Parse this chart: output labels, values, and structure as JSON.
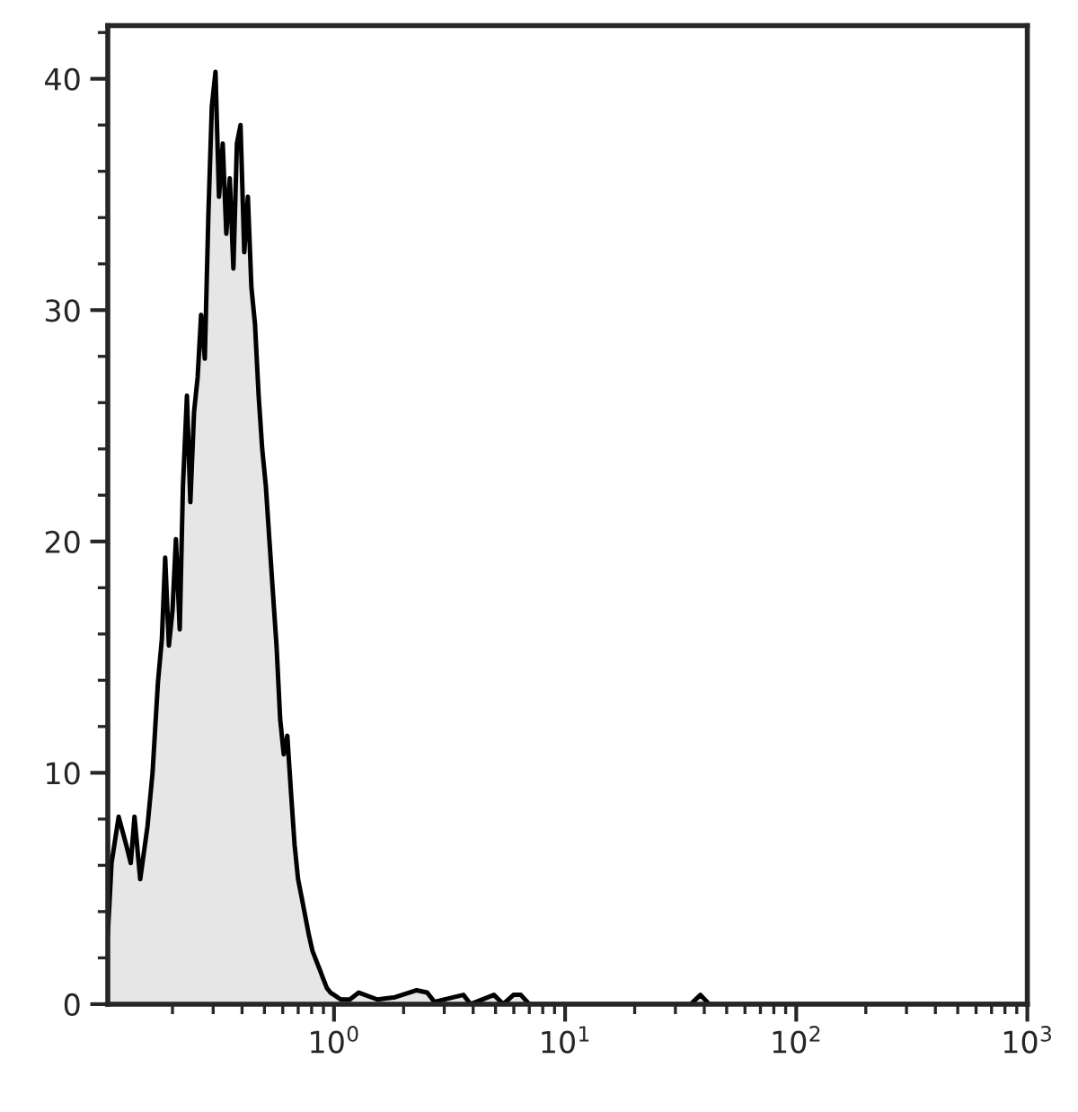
{
  "chart_data": {
    "type": "area",
    "log": "x",
    "grid": false,
    "legend": false,
    "xlim": [
      0.105,
      1000
    ],
    "ylim": [
      0,
      42.3
    ],
    "xticks": [
      {
        "value": 1,
        "label": "10$^{0}$"
      },
      {
        "value": 10,
        "label": "10$^{1}$"
      },
      {
        "value": 100,
        "label": "10$^{2}$"
      },
      {
        "value": 1000,
        "label": "10$^{3}$"
      }
    ],
    "yticks": [
      0,
      10,
      20,
      30,
      40
    ],
    "series": [
      {
        "color": "#e6e6e6",
        "x": [
          0.105,
          0.109,
          0.117,
          0.126,
          0.132,
          0.137,
          0.145,
          0.156,
          0.164,
          0.173,
          0.18,
          0.186,
          0.193,
          0.2,
          0.207,
          0.215,
          0.222,
          0.231,
          0.239,
          0.248,
          0.257,
          0.266,
          0.276,
          0.286,
          0.296,
          0.307,
          0.318,
          0.33,
          0.342,
          0.354,
          0.367,
          0.38,
          0.394,
          0.409,
          0.424,
          0.439,
          0.455,
          0.472,
          0.489,
          0.507,
          0.525,
          0.544,
          0.564,
          0.585,
          0.606,
          0.628,
          0.651,
          0.675,
          0.699,
          0.725,
          0.751,
          0.778,
          0.807,
          0.836,
          0.867,
          0.898,
          0.931,
          0.965,
          1.0,
          1.07,
          1.17,
          1.28,
          1.54,
          1.84,
          2.28,
          2.53,
          2.72,
          3.63,
          3.9,
          4.92,
          5.4,
          5.98,
          6.43,
          7.0,
          35,
          38.5,
          42,
          1000
        ],
        "values": [
          3.0,
          6.1,
          8.1,
          6.9,
          6.1,
          8.1,
          5.4,
          7.7,
          10,
          13.9,
          15.8,
          19.3,
          15.5,
          17,
          20.1,
          16.2,
          22.4,
          26.3,
          21.7,
          25.6,
          27.1,
          29.8,
          27.9,
          34.1,
          38.8,
          40.3,
          34.9,
          37.2,
          33.3,
          35.7,
          31.8,
          37.2,
          38,
          32.5,
          34.9,
          31,
          29.4,
          26.3,
          24,
          22.4,
          20.1,
          17.8,
          15.5,
          12.3,
          10.8,
          11.6,
          9.2,
          6.9,
          5.4,
          4.6,
          3.8,
          3.0,
          2.3,
          1.9,
          1.5,
          1.1,
          0.7,
          0.5,
          0.4,
          0.2,
          0.2,
          0.5,
          0.2,
          0.3,
          0.6,
          0.5,
          0.1,
          0.4,
          0,
          0.4,
          0,
          0.4,
          0.4,
          0,
          0,
          0.4,
          0,
          0
        ]
      }
    ]
  }
}
